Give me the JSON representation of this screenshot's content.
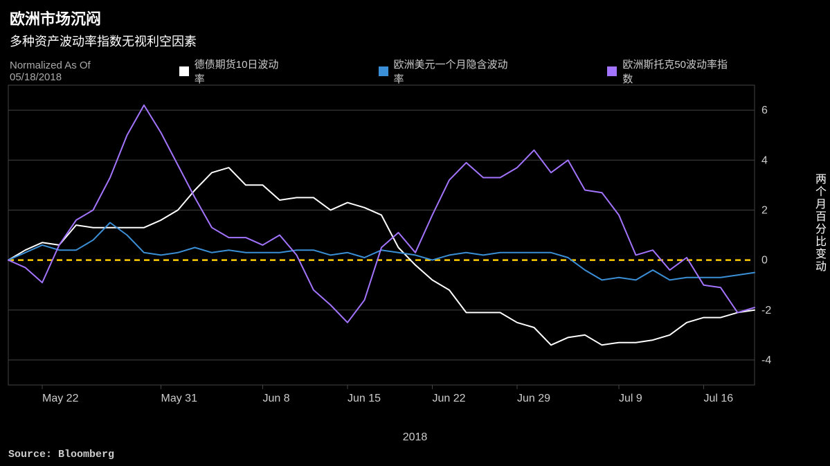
{
  "title": "欧洲市场沉闷",
  "subtitle": "多种资产波动率指数无视利空因素",
  "normalized_label": "Normalized As Of 05/18/2018",
  "legend": [
    {
      "label": "德债期货10日波动率",
      "color": "#ffffff"
    },
    {
      "label": "欧洲美元一个月隐含波动率",
      "color": "#3b8fd6"
    },
    {
      "label": "欧洲斯托克50波动率指数",
      "color": "#a374ff"
    }
  ],
  "chart": {
    "type": "line",
    "background_color": "#000000",
    "grid_color": "#444444",
    "zero_line_color": "#ffcc00",
    "axis_text_color": "#cccccc",
    "y_axis_title": "两个月百分比变动",
    "x_year_label": "2018",
    "ylim": [
      -5,
      7
    ],
    "yticks": [
      -4,
      -2,
      0,
      2,
      4,
      6
    ],
    "x_count": 45,
    "x_tick_labels": [
      {
        "idx": 2,
        "label": "May 22"
      },
      {
        "idx": 9,
        "label": "May 31"
      },
      {
        "idx": 15,
        "label": "Jun 8"
      },
      {
        "idx": 20,
        "label": "Jun 15"
      },
      {
        "idx": 25,
        "label": "Jun 22"
      },
      {
        "idx": 30,
        "label": "Jun 29"
      },
      {
        "idx": 36,
        "label": "Jul 9"
      },
      {
        "idx": 41,
        "label": "Jul 16"
      }
    ],
    "series": [
      {
        "name": "german_bund_vol",
        "color": "#ffffff",
        "width": 2,
        "data": [
          0.0,
          0.4,
          0.7,
          0.6,
          1.4,
          1.3,
          1.3,
          1.3,
          1.3,
          1.6,
          2.0,
          2.8,
          3.5,
          3.7,
          3.0,
          3.0,
          2.4,
          2.5,
          2.5,
          2.0,
          2.3,
          2.1,
          1.8,
          0.5,
          -0.2,
          -0.8,
          -1.2,
          -2.1,
          -2.1,
          -2.1,
          -2.5,
          -2.7,
          -3.4,
          -3.1,
          -3.0,
          -3.4,
          -3.3,
          -3.3,
          -3.2,
          -3.0,
          -2.5,
          -2.3,
          -2.3,
          -2.1,
          -2.0
        ]
      },
      {
        "name": "eurodollar_implied_vol",
        "color": "#3b8fd6",
        "width": 2,
        "data": [
          0.0,
          0.3,
          0.6,
          0.4,
          0.4,
          0.8,
          1.5,
          1.0,
          0.3,
          0.2,
          0.3,
          0.5,
          0.3,
          0.4,
          0.3,
          0.3,
          0.3,
          0.4,
          0.4,
          0.2,
          0.3,
          0.1,
          0.4,
          0.3,
          0.2,
          0.0,
          0.2,
          0.3,
          0.2,
          0.3,
          0.3,
          0.3,
          0.3,
          0.1,
          -0.4,
          -0.8,
          -0.7,
          -0.8,
          -0.4,
          -0.8,
          -0.7,
          -0.7,
          -0.7,
          -0.6,
          -0.5
        ]
      },
      {
        "name": "vstoxx",
        "color": "#a374ff",
        "width": 2,
        "data": [
          0.0,
          -0.3,
          -0.9,
          0.6,
          1.6,
          2.0,
          3.3,
          5.0,
          6.2,
          5.1,
          3.8,
          2.5,
          1.3,
          0.9,
          0.9,
          0.6,
          1.0,
          0.2,
          -1.2,
          -1.8,
          -2.5,
          -1.6,
          0.5,
          1.1,
          0.3,
          1.8,
          3.2,
          3.9,
          3.3,
          3.3,
          3.7,
          4.4,
          3.5,
          4.0,
          2.8,
          2.7,
          1.8,
          0.2,
          0.4,
          -0.4,
          0.1,
          -1.0,
          -1.1,
          -2.1,
          -1.9
        ]
      }
    ]
  },
  "source": "Source: Bloomberg"
}
